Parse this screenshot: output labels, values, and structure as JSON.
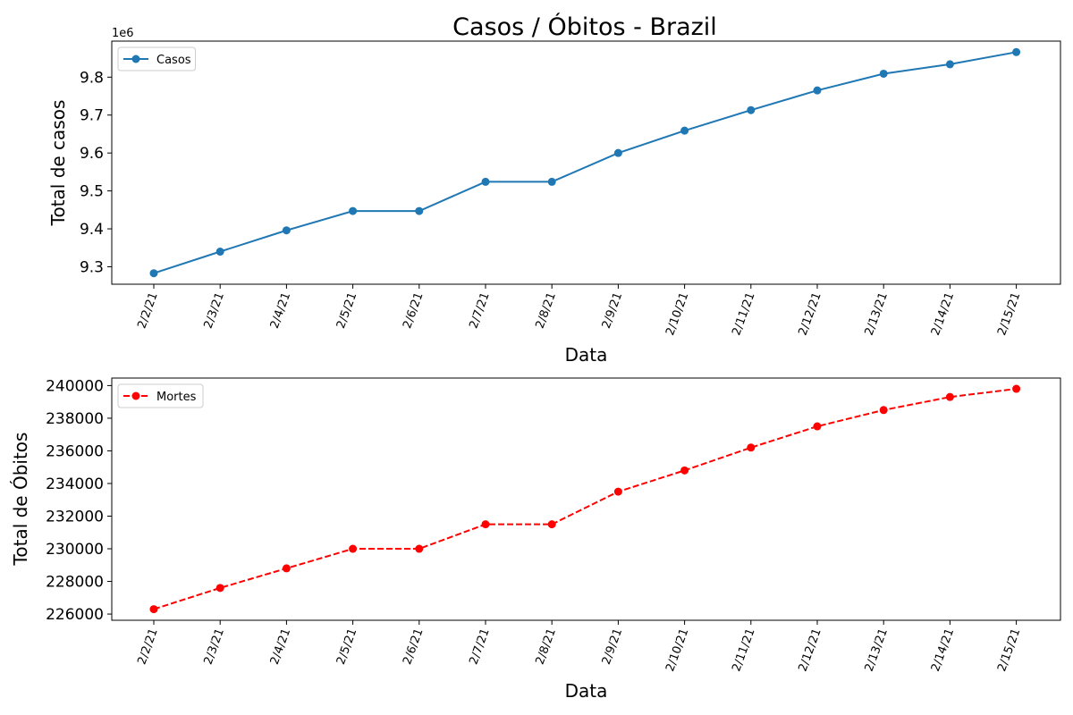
{
  "figure": {
    "title": "Casos / Óbitos - Brazil"
  },
  "chart_data": [
    {
      "type": "line",
      "title": "Casos / Óbitos - Brazil",
      "xlabel": "Data",
      "ylabel": "Total de casos",
      "y_multiplier_label": "1e6",
      "categories": [
        "2/2/21",
        "2/3/21",
        "2/4/21",
        "2/5/21",
        "2/6/21",
        "2/7/21",
        "2/8/21",
        "2/9/21",
        "2/10/21",
        "2/11/21",
        "2/12/21",
        "2/13/21",
        "2/14/21",
        "2/15/21"
      ],
      "series": [
        {
          "name": "Casos",
          "color": "#1f77b4",
          "linestyle": "solid",
          "marker": "circle",
          "values": [
            9283000,
            9340000,
            9396000,
            9447000,
            9447000,
            9524000,
            9524000,
            9600000,
            9659000,
            9713000,
            9765000,
            9809000,
            9834000,
            9866000
          ]
        }
      ],
      "yticks": [
        9.3,
        9.4,
        9.5,
        9.6,
        9.7,
        9.8
      ],
      "ytick_labels": [
        "9.3",
        "9.4",
        "9.5",
        "9.6",
        "9.7",
        "9.8"
      ],
      "ylim": [
        9254000,
        9895000
      ],
      "legend": "upper-left",
      "grid": false,
      "xtick_rotation": 70
    },
    {
      "type": "line",
      "xlabel": "Data",
      "ylabel": "Total de Óbitos",
      "categories": [
        "2/2/21",
        "2/3/21",
        "2/4/21",
        "2/5/21",
        "2/6/21",
        "2/7/21",
        "2/8/21",
        "2/9/21",
        "2/10/21",
        "2/11/21",
        "2/12/21",
        "2/13/21",
        "2/14/21",
        "2/15/21"
      ],
      "series": [
        {
          "name": "Mortes",
          "color": "#ff0000",
          "linestyle": "dashed",
          "marker": "circle",
          "values": [
            226300,
            227600,
            228800,
            230000,
            230000,
            231500,
            231500,
            233500,
            234800,
            236200,
            237500,
            238500,
            239300,
            239800
          ]
        }
      ],
      "yticks": [
        226000,
        228000,
        230000,
        232000,
        234000,
        236000,
        238000,
        240000
      ],
      "ytick_labels": [
        "226000",
        "228000",
        "230000",
        "232000",
        "234000",
        "236000",
        "238000",
        "240000"
      ],
      "ylim": [
        225620,
        240460
      ],
      "legend": "upper-left",
      "grid": false,
      "xtick_rotation": 70
    }
  ]
}
